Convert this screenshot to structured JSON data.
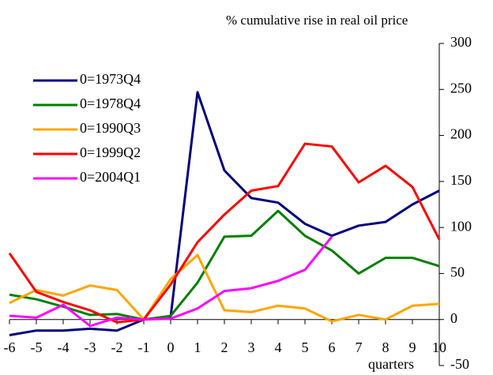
{
  "chart_data": {
    "type": "line",
    "y_label": "% cumulative rise in real oil price",
    "x_label": "quarters",
    "x": [
      -6,
      -5,
      -4,
      -3,
      -2,
      -1,
      0,
      1,
      2,
      3,
      4,
      5,
      6,
      7,
      8,
      9,
      10
    ],
    "xlim": [
      -6,
      10
    ],
    "xticks": [
      -6,
      -5,
      -4,
      -3,
      -2,
      -1,
      0,
      1,
      2,
      3,
      4,
      5,
      6,
      7,
      8,
      9,
      10
    ],
    "ylim": [
      -50,
      300
    ],
    "yticks": [
      -50,
      0,
      50,
      100,
      150,
      200,
      250,
      300
    ],
    "y_axis_side": "right",
    "legend": "upper left",
    "series": [
      {
        "name": "0=1973Q4",
        "color": "#000080",
        "values": [
          -17,
          -12,
          -12,
          -10,
          -12,
          0,
          3,
          247,
          162,
          132,
          127,
          104,
          91,
          102,
          106,
          125,
          140
        ]
      },
      {
        "name": "0=1978Q4",
        "color": "#008000",
        "values": [
          27,
          22,
          14,
          5,
          6,
          0,
          4,
          40,
          90,
          91,
          118,
          91,
          75,
          50,
          67,
          67,
          58
        ]
      },
      {
        "name": "0=1990Q3",
        "color": "#ffa500",
        "values": [
          18,
          32,
          26,
          37,
          32,
          0,
          44,
          70,
          10,
          8,
          15,
          12,
          -2,
          5,
          0,
          15,
          17
        ]
      },
      {
        "name": "0=1999Q2",
        "color": "#ff0000",
        "values": [
          72,
          30,
          19,
          10,
          -3,
          0,
          38,
          84,
          114,
          140,
          145,
          191,
          188,
          149,
          167,
          144,
          87
        ]
      },
      {
        "name": "0=2004Q1",
        "color": "#ff00ff",
        "values": [
          4,
          2,
          16,
          -7,
          2,
          0,
          1,
          12,
          31,
          34,
          42,
          54,
          90,
          null,
          null,
          null,
          null
        ]
      }
    ]
  }
}
